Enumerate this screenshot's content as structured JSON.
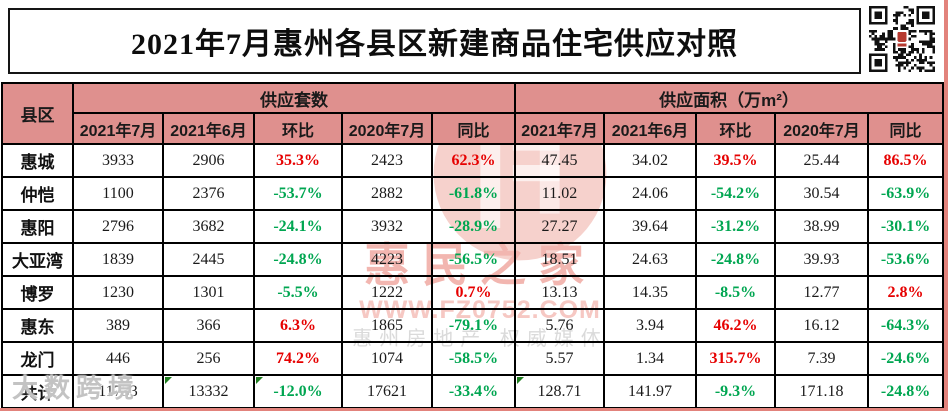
{
  "header": {
    "title": "2021年7月惠州各县区新建商品住宅供应对照",
    "qr_icon": "qr-code"
  },
  "table": {
    "corner": "县区",
    "groups": [
      "供应套数",
      "供应面积（万m²）"
    ],
    "columns": [
      "2021年7月",
      "2021年6月",
      "环比",
      "2020年7月",
      "同比"
    ],
    "rows": [
      {
        "district": "惠城",
        "cells": [
          "3933",
          "2906",
          "35.3%",
          "2423",
          "62.3%",
          "47.45",
          "34.02",
          "39.5%",
          "25.44",
          "86.5%"
        ]
      },
      {
        "district": "仲恺",
        "cells": [
          "1100",
          "2376",
          "-53.7%",
          "2882",
          "-61.8%",
          "11.02",
          "24.06",
          "-54.2%",
          "30.54",
          "-63.9%"
        ]
      },
      {
        "district": "惠阳",
        "cells": [
          "2796",
          "3682",
          "-24.1%",
          "3932",
          "-28.9%",
          "27.27",
          "39.64",
          "-31.2%",
          "38.99",
          "-30.1%"
        ]
      },
      {
        "district": "大亚湾",
        "cells": [
          "1839",
          "2445",
          "-24.8%",
          "4223",
          "-56.5%",
          "18.51",
          "24.63",
          "-24.8%",
          "39.93",
          "-53.6%"
        ]
      },
      {
        "district": "博罗",
        "cells": [
          "1230",
          "1301",
          "-5.5%",
          "1222",
          "0.7%",
          "13.13",
          "14.35",
          "-8.5%",
          "12.77",
          "2.8%"
        ]
      },
      {
        "district": "惠东",
        "cells": [
          "389",
          "366",
          "6.3%",
          "1865",
          "-79.1%",
          "5.76",
          "3.94",
          "46.2%",
          "16.12",
          "-64.3%"
        ]
      },
      {
        "district": "龙门",
        "cells": [
          "446",
          "256",
          "74.2%",
          "1074",
          "-58.5%",
          "5.57",
          "1.34",
          "315.7%",
          "7.39",
          "-24.6%"
        ]
      },
      {
        "district": "共计",
        "cells": [
          "11733",
          "13332",
          "-12.0%",
          "17621",
          "-33.4%",
          "128.71",
          "141.97",
          "-9.3%",
          "171.18",
          "-24.8%"
        ]
      }
    ]
  },
  "watermark": {
    "brand": "惠民之家",
    "url": "WWW.FZ0752.COM",
    "tagline": "惠州房地产 权威媒体",
    "corner": "大数跨境"
  },
  "colors": {
    "header_bg": "#df908e",
    "positive_red": "#e60000",
    "negative_green": "#00a651",
    "frame": "#e2837c"
  }
}
